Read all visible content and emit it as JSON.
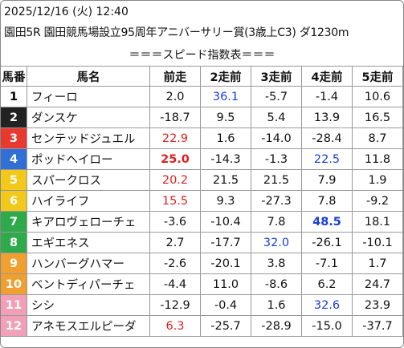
{
  "header": {
    "datetime": "2025/12/16 (火) 12:40",
    "race": "園田5R 園田競馬場設立95周年アニバーサリー賞(3歳上C3) ダ1230m",
    "title": "＝＝＝スピード指数表＝＝＝"
  },
  "table": {
    "columns": [
      "馬番",
      "馬名",
      "前走",
      "2走前",
      "3走前",
      "4走前",
      "5走前"
    ],
    "rows": [
      {
        "num": "1",
        "color": "#ffffff",
        "text_color": "#000000",
        "cells": [
          "フィーロ",
          "2.0",
          {
            "text": "36.1",
            "color": "#1a3fd8"
          },
          "-5.7",
          "-1.4",
          "10.6"
        ]
      },
      {
        "num": "2",
        "color": "#222222",
        "text_color": "#ffffff",
        "cells": [
          "ダンスケ",
          "-18.7",
          "9.5",
          "5.4",
          "13.9",
          "16.5"
        ]
      },
      {
        "num": "3",
        "color": "#e8392f",
        "text_color": "#ffffff",
        "cells": [
          "センテッドジュエル",
          {
            "text": "22.9",
            "color": "#e02020"
          },
          "1.6",
          "-14.0",
          "-28.4",
          "8.7"
        ]
      },
      {
        "num": "4",
        "color": "#2f6fd6",
        "text_color": "#ffffff",
        "cells": [
          "ポッドヘイロー",
          {
            "text": "25.0",
            "color": "#e02020",
            "bold": true
          },
          "-14.3",
          "-1.3",
          {
            "text": "22.5",
            "color": "#1a3fd8"
          },
          "11.8"
        ]
      },
      {
        "num": "5",
        "color": "#f2c81a",
        "text_color": "#ffffff",
        "cells": [
          "スパークロス",
          {
            "text": "20.2",
            "color": "#e02020"
          },
          "21.5",
          "21.5",
          "7.9",
          "1.9"
        ]
      },
      {
        "num": "6",
        "color": "#f2c81a",
        "text_color": "#ffffff",
        "cells": [
          "ハイライフ",
          {
            "text": "15.5",
            "color": "#e02020"
          },
          "9.3",
          "-27.3",
          "7.8",
          "-9.2"
        ]
      },
      {
        "num": "7",
        "color": "#2eaa4a",
        "text_color": "#ffffff",
        "cells": [
          "キアロヴェローチェ",
          "-3.6",
          "-10.4",
          "7.8",
          {
            "text": "48.5",
            "color": "#1a3fd8",
            "bold": true
          },
          "18.1"
        ]
      },
      {
        "num": "8",
        "color": "#2eaa4a",
        "text_color": "#ffffff",
        "cells": [
          "エギエネス",
          "2.7",
          "-17.7",
          {
            "text": "32.0",
            "color": "#1a3fd8"
          },
          "-26.1",
          "-10.1"
        ]
      },
      {
        "num": "9",
        "color": "#f0a030",
        "text_color": "#ffffff",
        "cells": [
          "ハンバーグハマー",
          "-2.6",
          "-20.1",
          "3.8",
          "-7.1",
          "1.7"
        ]
      },
      {
        "num": "10",
        "color": "#f0a030",
        "text_color": "#ffffff",
        "cells": [
          "ベントディパーチェ",
          "-4.4",
          "11.0",
          "-8.6",
          "6.2",
          "24.7"
        ]
      },
      {
        "num": "11",
        "color": "#f2a0b8",
        "text_color": "#ffffff",
        "cells": [
          "シシ",
          "-12.9",
          "-0.4",
          "1.6",
          {
            "text": "32.6",
            "color": "#1a3fd8"
          },
          "23.9"
        ]
      },
      {
        "num": "12",
        "color": "#f2a0b8",
        "text_color": "#ffffff",
        "cells": [
          "アネモスエルピーダ",
          {
            "text": "6.3",
            "color": "#e02020"
          },
          "-25.7",
          "-28.9",
          "-15.0",
          "-37.7"
        ]
      }
    ]
  }
}
